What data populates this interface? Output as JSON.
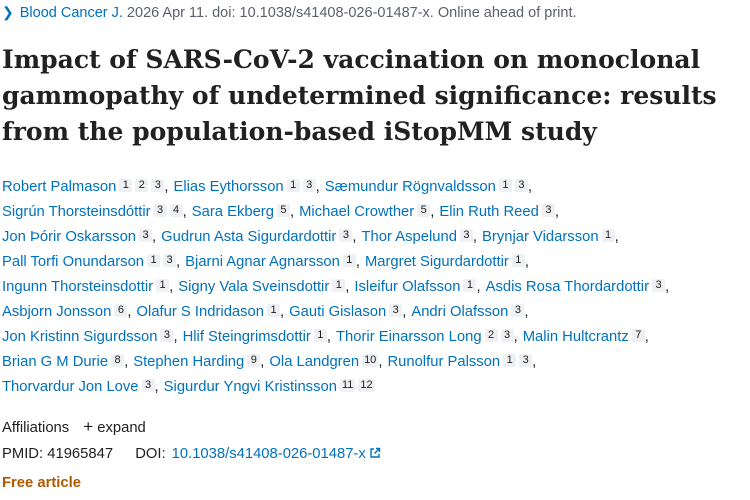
{
  "citation": {
    "chevron_icon": "chevron-right-icon",
    "journal": "Blood Cancer J.",
    "details": " 2026 Apr 11. doi: 10.1038/s41408-026-01487-x. Online ahead of print."
  },
  "title": "Impact of SARS-CoV-2 vaccination on monoclonal gammopathy of undetermined significance: results from the population-based iStopMM study",
  "authors_lines": [
    [
      {
        "name": "Robert Palmason",
        "affs": [
          "1",
          "2",
          "3"
        ]
      },
      {
        "name": "Elias Eythorsson",
        "affs": [
          "1",
          "3"
        ]
      },
      {
        "name": "Sæmundur Rögnvaldsson",
        "affs": [
          "1",
          "3"
        ]
      }
    ],
    [
      {
        "name": "Sigrún Thorsteinsdóttir",
        "affs": [
          "3",
          "4"
        ]
      },
      {
        "name": "Sara Ekberg",
        "affs": [
          "5"
        ]
      },
      {
        "name": "Michael Crowther",
        "affs": [
          "5"
        ]
      },
      {
        "name": "Elin Ruth Reed",
        "affs": [
          "3"
        ]
      }
    ],
    [
      {
        "name": "Jon Þórir Oskarsson",
        "affs": [
          "3"
        ]
      },
      {
        "name": "Gudrun Asta Sigurdardottir",
        "affs": [
          "3"
        ]
      },
      {
        "name": "Thor Aspelund",
        "affs": [
          "3"
        ]
      },
      {
        "name": "Brynjar Vidarsson",
        "affs": [
          "1"
        ]
      }
    ],
    [
      {
        "name": "Pall Torfi Onundarson",
        "affs": [
          "1",
          "3"
        ]
      },
      {
        "name": "Bjarni Agnar Agnarsson",
        "affs": [
          "1"
        ]
      },
      {
        "name": "Margret Sigurdardottir",
        "affs": [
          "1"
        ]
      }
    ],
    [
      {
        "name": "Ingunn Thorsteinsdottir",
        "affs": [
          "1"
        ]
      },
      {
        "name": "Signy Vala Sveinsdottir",
        "affs": [
          "1"
        ]
      },
      {
        "name": "Isleifur Olafsson",
        "affs": [
          "1"
        ]
      },
      {
        "name": "Asdis Rosa Thordardottir",
        "affs": [
          "3"
        ]
      }
    ],
    [
      {
        "name": "Asbjorn Jonsson",
        "affs": [
          "6"
        ]
      },
      {
        "name": "Olafur S Indridason",
        "affs": [
          "1"
        ]
      },
      {
        "name": "Gauti Gislason",
        "affs": [
          "3"
        ]
      },
      {
        "name": "Andri Olafsson",
        "affs": [
          "3"
        ]
      }
    ],
    [
      {
        "name": "Jon Kristinn Sigurdsson",
        "affs": [
          "3"
        ]
      },
      {
        "name": "Hlif Steingrimsdottir",
        "affs": [
          "1"
        ]
      },
      {
        "name": "Thorir Einarsson Long",
        "affs": [
          "2",
          "3"
        ]
      },
      {
        "name": "Malin Hultcrantz",
        "affs": [
          "7"
        ]
      }
    ],
    [
      {
        "name": "Brian G M Durie",
        "affs": [
          "8"
        ]
      },
      {
        "name": "Stephen Harding",
        "affs": [
          "9"
        ]
      },
      {
        "name": "Ola Landgren",
        "affs": [
          "10"
        ]
      },
      {
        "name": "Runolfur Palsson",
        "affs": [
          "1",
          "3"
        ]
      }
    ],
    [
      {
        "name": "Thorvardur Jon Love",
        "affs": [
          "3"
        ]
      },
      {
        "name": "Sigurdur Yngvi Kristinsson",
        "affs": [
          "11",
          "12"
        ]
      }
    ]
  ],
  "affiliations": {
    "label": "Affiliations",
    "plus_icon": "plus-icon",
    "expand": "expand"
  },
  "ids": {
    "pmid_label": "PMID:",
    "pmid": "41965847",
    "doi_label": "DOI:",
    "doi": "10.1038/s41408-026-01487-x",
    "external_icon": "external-link-icon"
  },
  "free_article": "Free article"
}
